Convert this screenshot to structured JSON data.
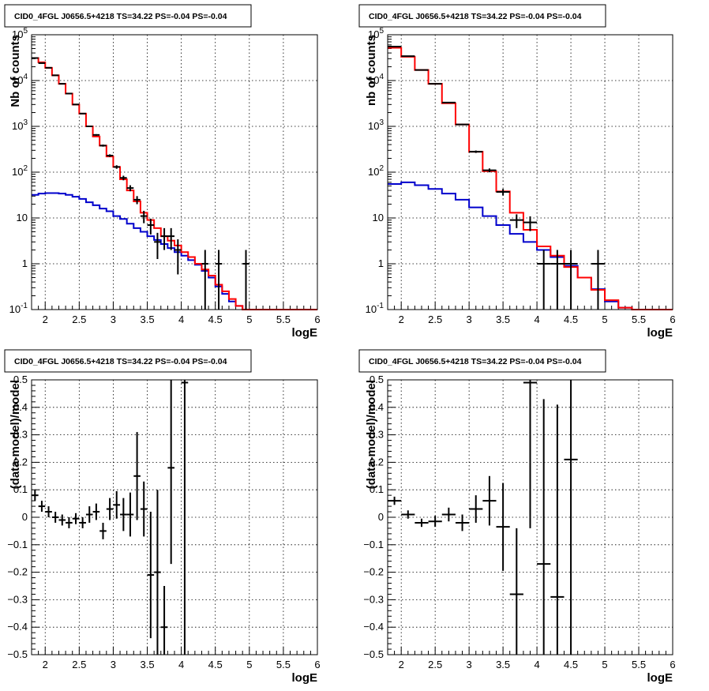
{
  "colors": {
    "data": "#000000",
    "model_total": "#ff0000",
    "model_background": "#0000cc",
    "grid": "#000000",
    "frame": "#000000"
  },
  "chart_data": [
    {
      "id": "counts-left",
      "type": "line",
      "title": "CID0_4FGL J0656.5+4218 TS=34.22 PS=-0.04 PS=-0.04",
      "xlabel": "logE",
      "ylabel": "Nb of counts",
      "xlim": [
        1.8,
        6
      ],
      "ylim": [
        0.1,
        100000
      ],
      "yscale": "log",
      "grid": true,
      "xticks": [
        "2",
        "2.5",
        "3",
        "3.5",
        "4",
        "4.5",
        "5",
        "5.5",
        "6"
      ],
      "yticks": [
        "10^-1",
        "1",
        "10",
        "10^2",
        "10^3",
        "10^4",
        "10^5"
      ],
      "series": [
        {
          "kind": "step",
          "color": "#0000cc",
          "edges": [
            1.8,
            1.9,
            2.0,
            2.1,
            2.2,
            2.3,
            2.4,
            2.5,
            2.6,
            2.7,
            2.8,
            2.9,
            3.0,
            3.1,
            3.2,
            3.3,
            3.4,
            3.5,
            3.6,
            3.7,
            3.8,
            3.9,
            4.0,
            4.1,
            4.2,
            4.3,
            4.4,
            4.5,
            4.6,
            4.7,
            4.8,
            4.9,
            5.0,
            5.1,
            5.2,
            5.3,
            5.4,
            5.5,
            5.6,
            5.7,
            5.8,
            5.9,
            6.0
          ],
          "values": [
            32,
            34,
            35,
            35,
            34,
            32,
            29,
            26,
            22,
            19,
            16,
            14,
            11,
            9.5,
            7.5,
            6,
            5,
            4,
            3.3,
            2.7,
            2.2,
            1.8,
            1.5,
            1.2,
            0.95,
            0.7,
            0.5,
            0.32,
            0.22,
            0.15,
            0.12,
            0.1,
            0.1,
            0.1,
            0.1,
            0.1,
            0.1,
            0.1,
            0.1,
            0.1,
            0.1,
            0.1
          ]
        },
        {
          "kind": "step",
          "color": "#ff0000",
          "edges": [
            1.8,
            1.9,
            2.0,
            2.1,
            2.2,
            2.3,
            2.4,
            2.5,
            2.6,
            2.7,
            2.8,
            2.9,
            3.0,
            3.1,
            3.2,
            3.3,
            3.4,
            3.5,
            3.6,
            3.7,
            3.8,
            3.9,
            4.0,
            4.1,
            4.2,
            4.3,
            4.4,
            4.5,
            4.6,
            4.7,
            4.8,
            4.9,
            5.0,
            5.1,
            5.2,
            5.3,
            5.4,
            5.5,
            5.6,
            5.7,
            5.8,
            5.9,
            6.0
          ],
          "values": [
            31000,
            25000,
            19000,
            13000,
            8500,
            5200,
            3000,
            1900,
            1000,
            600,
            380,
            220,
            130,
            70,
            40,
            23,
            13,
            9,
            6,
            4,
            3.2,
            2.5,
            1.8,
            1.4,
            1,
            0.75,
            0.55,
            0.35,
            0.25,
            0.17,
            0.12,
            0.1,
            0.1,
            0.1,
            0.1,
            0.1,
            0.1,
            0.1,
            0.1,
            0.1,
            0.1,
            0.1
          ]
        },
        {
          "kind": "points",
          "color": "#000000",
          "points": [
            {
              "x": 1.85,
              "y": 31000
            },
            {
              "x": 1.95,
              "y": 24000
            },
            {
              "x": 2.05,
              "y": 19000
            },
            {
              "x": 2.15,
              "y": 13000
            },
            {
              "x": 2.25,
              "y": 8500
            },
            {
              "x": 2.35,
              "y": 5200
            },
            {
              "x": 2.45,
              "y": 3000
            },
            {
              "x": 2.55,
              "y": 1900
            },
            {
              "x": 2.65,
              "y": 1000
            },
            {
              "x": 2.75,
              "y": 650
            },
            {
              "x": 2.85,
              "y": 380
            },
            {
              "x": 2.95,
              "y": 230
            },
            {
              "x": 3.05,
              "y": 130
            },
            {
              "x": 3.15,
              "y": 75
            },
            {
              "x": 3.25,
              "y": 45
            },
            {
              "x": 3.35,
              "y": 25
            },
            {
              "x": 3.45,
              "y": 11
            },
            {
              "x": 3.55,
              "y": 7
            },
            {
              "x": 3.65,
              "y": 3
            },
            {
              "x": 3.75,
              "y": 4
            },
            {
              "x": 3.85,
              "y": 4
            },
            {
              "x": 3.95,
              "y": 2
            },
            {
              "x": 4.35,
              "y": 1
            },
            {
              "x": 4.55,
              "y": 1
            },
            {
              "x": 4.95,
              "y": 1
            }
          ]
        }
      ]
    },
    {
      "id": "counts-right",
      "type": "line",
      "title": "CID0_4FGL J0656.5+4218 TS=34.22 PS=-0.04 PS=-0.04",
      "xlabel": "logE",
      "ylabel": "nb of counts",
      "xlim": [
        1.8,
        6
      ],
      "ylim": [
        0.1,
        100000
      ],
      "yscale": "log",
      "grid": true,
      "xticks": [
        "2",
        "2.5",
        "3",
        "3.5",
        "4",
        "4.5",
        "5",
        "5.5",
        "6"
      ],
      "yticks": [
        "10^-1",
        "1",
        "10",
        "10^2",
        "10^3",
        "10^4",
        "10^5"
      ],
      "series": [
        {
          "kind": "step",
          "color": "#0000cc",
          "edges": [
            1.8,
            2.0,
            2.2,
            2.4,
            2.6,
            2.8,
            3.0,
            3.2,
            3.4,
            3.6,
            3.8,
            4.0,
            4.2,
            4.4,
            4.6,
            4.8,
            5.0,
            5.2,
            5.4,
            5.6,
            5.8,
            6.0
          ],
          "values": [
            55,
            60,
            52,
            43,
            34,
            25,
            17,
            11,
            7,
            4.5,
            3,
            2,
            1.4,
            0.9,
            0.5,
            0.28,
            0.15,
            0.11,
            0.1,
            0.1,
            0.1
          ]
        },
        {
          "kind": "step",
          "color": "#ff0000",
          "edges": [
            1.8,
            2.0,
            2.2,
            2.4,
            2.6,
            2.8,
            3.0,
            3.2,
            3.4,
            3.6,
            3.8,
            4.0,
            4.2,
            4.4,
            4.6,
            4.8,
            5.0,
            5.2,
            5.4,
            5.6,
            5.8,
            6.0
          ],
          "values": [
            52000,
            33000,
            17000,
            8500,
            3200,
            1100,
            280,
            105,
            38,
            13,
            5.5,
            2.4,
            1.5,
            0.85,
            0.5,
            0.27,
            0.16,
            0.11,
            0.1,
            0.1,
            0.1
          ]
        },
        {
          "kind": "points",
          "color": "#000000",
          "points": [
            {
              "x": 1.9,
              "y": 55000
            },
            {
              "x": 2.1,
              "y": 34000
            },
            {
              "x": 2.3,
              "y": 17000
            },
            {
              "x": 2.5,
              "y": 8500
            },
            {
              "x": 2.7,
              "y": 3300
            },
            {
              "x": 2.9,
              "y": 1100
            },
            {
              "x": 3.1,
              "y": 280
            },
            {
              "x": 3.3,
              "y": 110
            },
            {
              "x": 3.5,
              "y": 37
            },
            {
              "x": 3.7,
              "y": 9
            },
            {
              "x": 3.9,
              "y": 8
            },
            {
              "x": 4.1,
              "y": 1
            },
            {
              "x": 4.3,
              "y": 1
            },
            {
              "x": 4.5,
              "y": 1
            },
            {
              "x": 4.9,
              "y": 1
            }
          ]
        }
      ]
    },
    {
      "id": "residuals-left",
      "type": "scatter",
      "title": "CID0_4FGL J0656.5+4218 TS=34.22 PS=-0.04 PS=-0.04",
      "xlabel": "logE",
      "ylabel": "(data-model)/model",
      "xlim": [
        1.8,
        6
      ],
      "ylim": [
        -0.5,
        0.5
      ],
      "grid": true,
      "xticks": [
        "2",
        "2.5",
        "3",
        "3.5",
        "4",
        "4.5",
        "5",
        "5.5",
        "6"
      ],
      "yticks": [
        "−0.5",
        "−0.4",
        "−0.3",
        "−0.2",
        "−0.1",
        "0",
        "0.1",
        "0.2",
        "0.3",
        "0.4",
        "0.5"
      ],
      "points": [
        {
          "x": 1.85,
          "y": 0.08,
          "xerr": 0.05,
          "yerr": 0.02
        },
        {
          "x": 1.95,
          "y": 0.04,
          "xerr": 0.05,
          "yerr": 0.02
        },
        {
          "x": 2.05,
          "y": 0.02,
          "xerr": 0.05,
          "yerr": 0.02
        },
        {
          "x": 2.15,
          "y": 0.0,
          "xerr": 0.05,
          "yerr": 0.02
        },
        {
          "x": 2.25,
          "y": -0.01,
          "xerr": 0.05,
          "yerr": 0.02
        },
        {
          "x": 2.35,
          "y": -0.02,
          "xerr": 0.05,
          "yerr": 0.02
        },
        {
          "x": 2.45,
          "y": -0.005,
          "xerr": 0.05,
          "yerr": 0.02
        },
        {
          "x": 2.55,
          "y": -0.02,
          "xerr": 0.05,
          "yerr": 0.02
        },
        {
          "x": 2.65,
          "y": 0.01,
          "xerr": 0.05,
          "yerr": 0.03
        },
        {
          "x": 2.75,
          "y": 0.02,
          "xerr": 0.05,
          "yerr": 0.03
        },
        {
          "x": 2.85,
          "y": -0.05,
          "xerr": 0.05,
          "yerr": 0.03
        },
        {
          "x": 2.95,
          "y": 0.03,
          "xerr": 0.05,
          "yerr": 0.04
        },
        {
          "x": 3.05,
          "y": 0.045,
          "xerr": 0.05,
          "yerr": 0.05
        },
        {
          "x": 3.15,
          "y": 0.01,
          "xerr": 0.05,
          "yerr": 0.06
        },
        {
          "x": 3.25,
          "y": 0.01,
          "xerr": 0.05,
          "yerr": 0.08
        },
        {
          "x": 3.35,
          "y": 0.15,
          "xerr": 0.05,
          "yerr": 0.16
        },
        {
          "x": 3.45,
          "y": 0.03,
          "xerr": 0.05,
          "yerr": 0.1
        },
        {
          "x": 3.55,
          "y": -0.21,
          "xerr": 0.05,
          "yerr": 0.23
        },
        {
          "x": 3.65,
          "y": -0.2,
          "xerr": 0.05,
          "yerr": 0.3
        },
        {
          "x": 3.75,
          "y": -0.4,
          "xerr": 0.05,
          "yerr": 0.15
        },
        {
          "x": 3.85,
          "y": 0.18,
          "xerr": 0.05,
          "yerr": 0.35
        },
        {
          "x": 4.05,
          "y": 0.49,
          "xerr": 0.05,
          "yerr": 1.0
        }
      ]
    },
    {
      "id": "residuals-right",
      "type": "scatter",
      "title": "CID0_4FGL J0656.5+4218 TS=34.22 PS=-0.04 PS=-0.04",
      "xlabel": "logE",
      "ylabel": "(data-model)/model",
      "xlim": [
        1.8,
        6
      ],
      "ylim": [
        -0.5,
        0.5
      ],
      "grid": true,
      "xticks": [
        "2",
        "2.5",
        "3",
        "3.5",
        "4",
        "4.5",
        "5",
        "5.5",
        "6"
      ],
      "yticks": [
        "−0.5",
        "−0.4",
        "−0.3",
        "−0.2",
        "−0.1",
        "0",
        "0.1",
        "0.2",
        "0.3",
        "0.4",
        "0.5"
      ],
      "points": [
        {
          "x": 1.9,
          "y": 0.06,
          "xerr": 0.1,
          "yerr": 0.015
        },
        {
          "x": 2.1,
          "y": 0.01,
          "xerr": 0.1,
          "yerr": 0.015
        },
        {
          "x": 2.3,
          "y": -0.02,
          "xerr": 0.1,
          "yerr": 0.015
        },
        {
          "x": 2.5,
          "y": -0.015,
          "xerr": 0.1,
          "yerr": 0.02
        },
        {
          "x": 2.7,
          "y": 0.01,
          "xerr": 0.1,
          "yerr": 0.025
        },
        {
          "x": 2.9,
          "y": -0.02,
          "xerr": 0.1,
          "yerr": 0.03
        },
        {
          "x": 3.1,
          "y": 0.03,
          "xerr": 0.1,
          "yerr": 0.05
        },
        {
          "x": 3.3,
          "y": 0.06,
          "xerr": 0.1,
          "yerr": 0.09
        },
        {
          "x": 3.5,
          "y": -0.035,
          "xerr": 0.1,
          "yerr": 0.16
        },
        {
          "x": 3.7,
          "y": -0.28,
          "xerr": 0.1,
          "yerr": 0.24
        },
        {
          "x": 3.9,
          "y": 0.49,
          "xerr": 0.1,
          "yerr": 0.53
        },
        {
          "x": 4.1,
          "y": -0.17,
          "xerr": 0.1,
          "yerr": 0.6
        },
        {
          "x": 4.3,
          "y": -0.29,
          "xerr": 0.1,
          "yerr": 0.7
        },
        {
          "x": 4.5,
          "y": 0.21,
          "xerr": 0.1,
          "yerr": 0.9
        }
      ]
    }
  ]
}
